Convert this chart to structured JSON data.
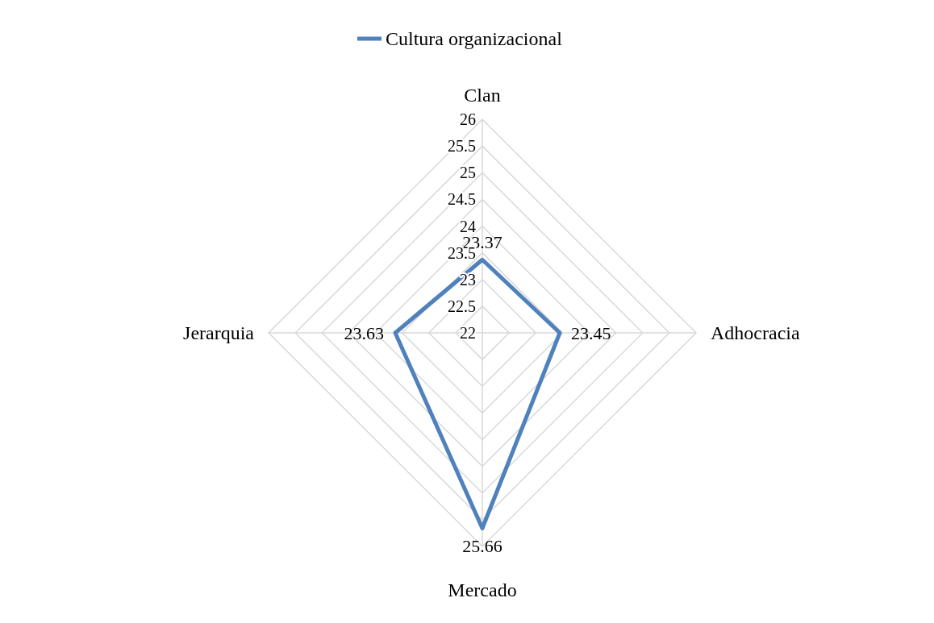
{
  "chart_data": {
    "type": "radar",
    "categories": [
      "Clan",
      "Adhocracia",
      "Mercado",
      "Jerarquia"
    ],
    "series": [
      {
        "name": "Cultura organizacional",
        "color": "#4f81bd",
        "values": [
          23.37,
          23.45,
          25.66,
          23.63
        ]
      }
    ],
    "ylim": [
      22,
      26
    ],
    "yticks": [
      22,
      22.5,
      23,
      23.5,
      24,
      24.5,
      25,
      25.5,
      26
    ],
    "data_labels": true,
    "legend": "top",
    "grid": true
  }
}
